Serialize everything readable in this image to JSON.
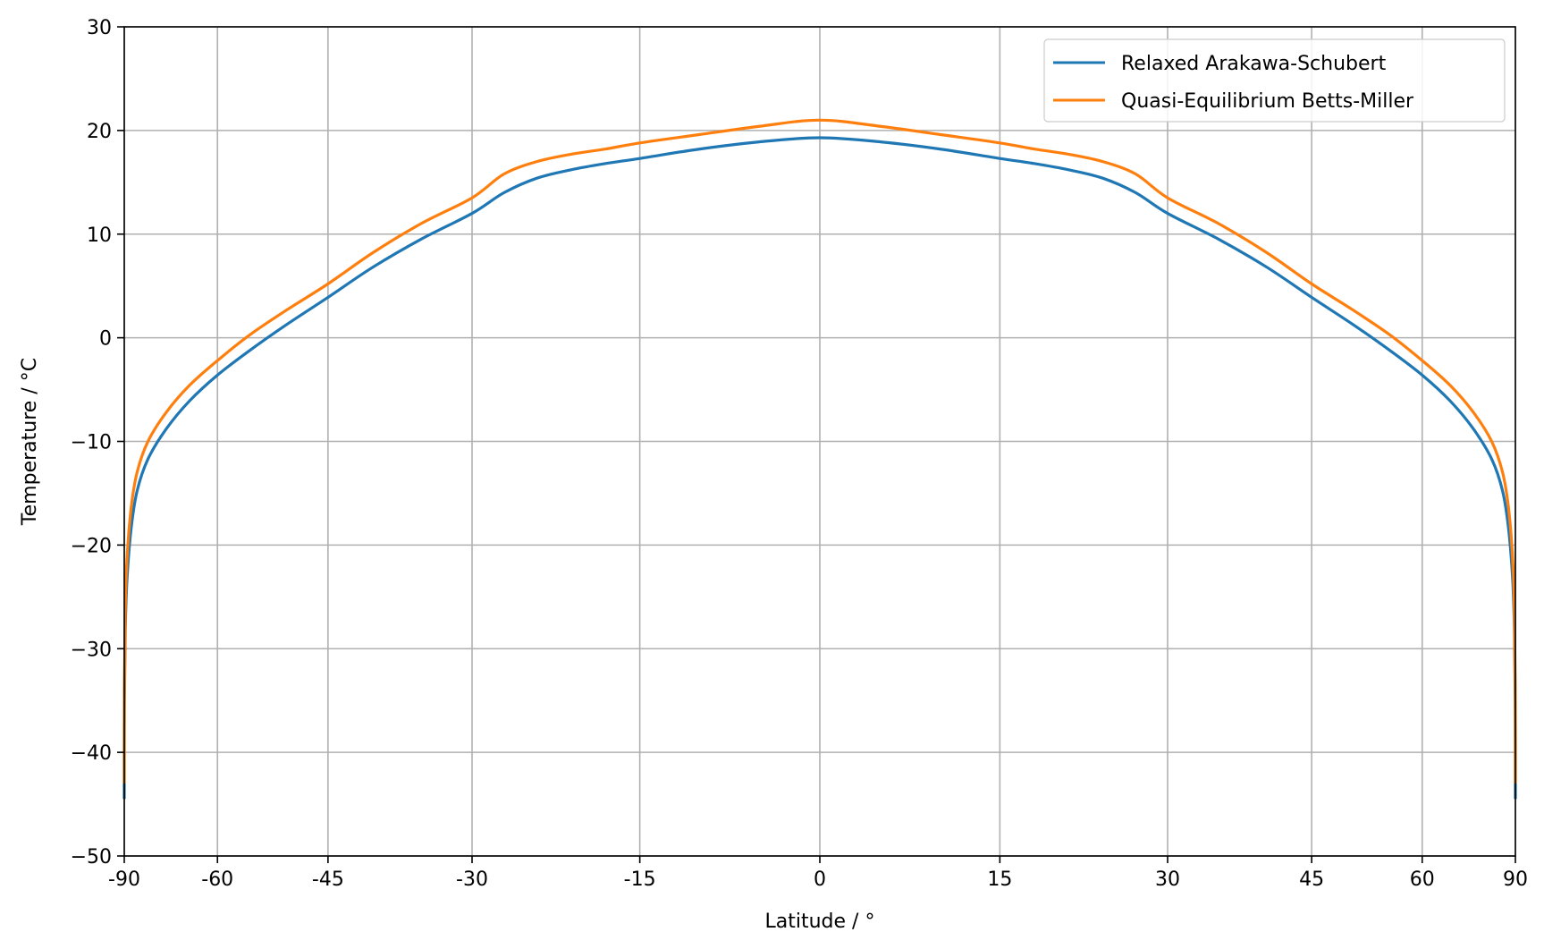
{
  "chart_data": {
    "type": "line",
    "title": "",
    "xlabel": "Latitude / °",
    "ylabel": "Temperature / °C",
    "xlim": [
      -90,
      90
    ],
    "ylim": [
      -50,
      30
    ],
    "x_scale": "sin",
    "xticks": [
      -90,
      -60,
      -45,
      -30,
      -15,
      0,
      15,
      30,
      45,
      60,
      90
    ],
    "xtick_labels": [
      "-90",
      "-60",
      "-45",
      "-30",
      "-15",
      "0",
      "15",
      "30",
      "45",
      "60",
      "90"
    ],
    "yticks": [
      -50,
      -40,
      -30,
      -20,
      -10,
      0,
      10,
      20,
      30
    ],
    "ytick_labels": [
      "−50",
      "−40",
      "−30",
      "−20",
      "−10",
      "0",
      "10",
      "20",
      "30"
    ],
    "grid": true,
    "legend_position": "top-right",
    "series": [
      {
        "name": "Relaxed Arakawa-Schubert",
        "color": "#1f77b4",
        "x": [
          -90,
          -89,
          -87,
          -85,
          -82,
          -79,
          -75,
          -70,
          -65,
          -60,
          -55,
          -50,
          -45,
          -40,
          -35,
          -30,
          -27,
          -24,
          -21,
          -18,
          -15,
          -10,
          -5,
          0,
          5,
          10,
          15,
          18,
          21,
          24,
          27,
          30,
          35,
          40,
          45,
          50,
          55,
          60,
          65,
          70,
          75,
          79,
          82,
          85,
          87,
          89,
          90
        ],
        "y": [
          -44.5,
          -36,
          -28.5,
          -23.5,
          -18.5,
          -14.8,
          -11.7,
          -8.8,
          -6.1,
          -3.6,
          -1.2,
          1.3,
          3.9,
          6.8,
          9.5,
          12,
          14,
          15.4,
          16.2,
          16.8,
          17.3,
          18.2,
          18.9,
          19.3,
          18.9,
          18.2,
          17.3,
          16.8,
          16.2,
          15.4,
          14,
          12,
          9.5,
          6.8,
          3.9,
          1.3,
          -1.2,
          -3.6,
          -6.1,
          -8.8,
          -11.7,
          -14.8,
          -18.5,
          -23.5,
          -28.5,
          -36,
          -44.5
        ]
      },
      {
        "name": "Quasi-Equilibrium Betts-Miller",
        "color": "#ff7f0e",
        "x": [
          -90,
          -89,
          -87,
          -85,
          -82,
          -79,
          -75,
          -70,
          -65,
          -60,
          -55,
          -50,
          -45,
          -40,
          -35,
          -30,
          -27,
          -24,
          -21,
          -18,
          -15,
          -10,
          -5,
          0,
          5,
          10,
          15,
          18,
          21,
          24,
          27,
          30,
          35,
          40,
          45,
          50,
          55,
          60,
          65,
          70,
          75,
          79,
          82,
          85,
          87,
          89,
          90
        ],
        "y": [
          -43,
          -34,
          -26.5,
          -21.5,
          -16.5,
          -13,
          -10,
          -7.2,
          -4.6,
          -2.2,
          0.3,
          2.7,
          5.2,
          8.2,
          11,
          13.5,
          15.8,
          17,
          17.7,
          18.2,
          18.8,
          19.6,
          20.4,
          21,
          20.4,
          19.6,
          18.8,
          18.2,
          17.7,
          17,
          15.8,
          13.5,
          11,
          8.2,
          5.2,
          2.7,
          0.3,
          -2.2,
          -4.6,
          -7.2,
          -10,
          -13,
          -16.5,
          -21.5,
          -26.5,
          -34,
          -43
        ]
      }
    ]
  }
}
